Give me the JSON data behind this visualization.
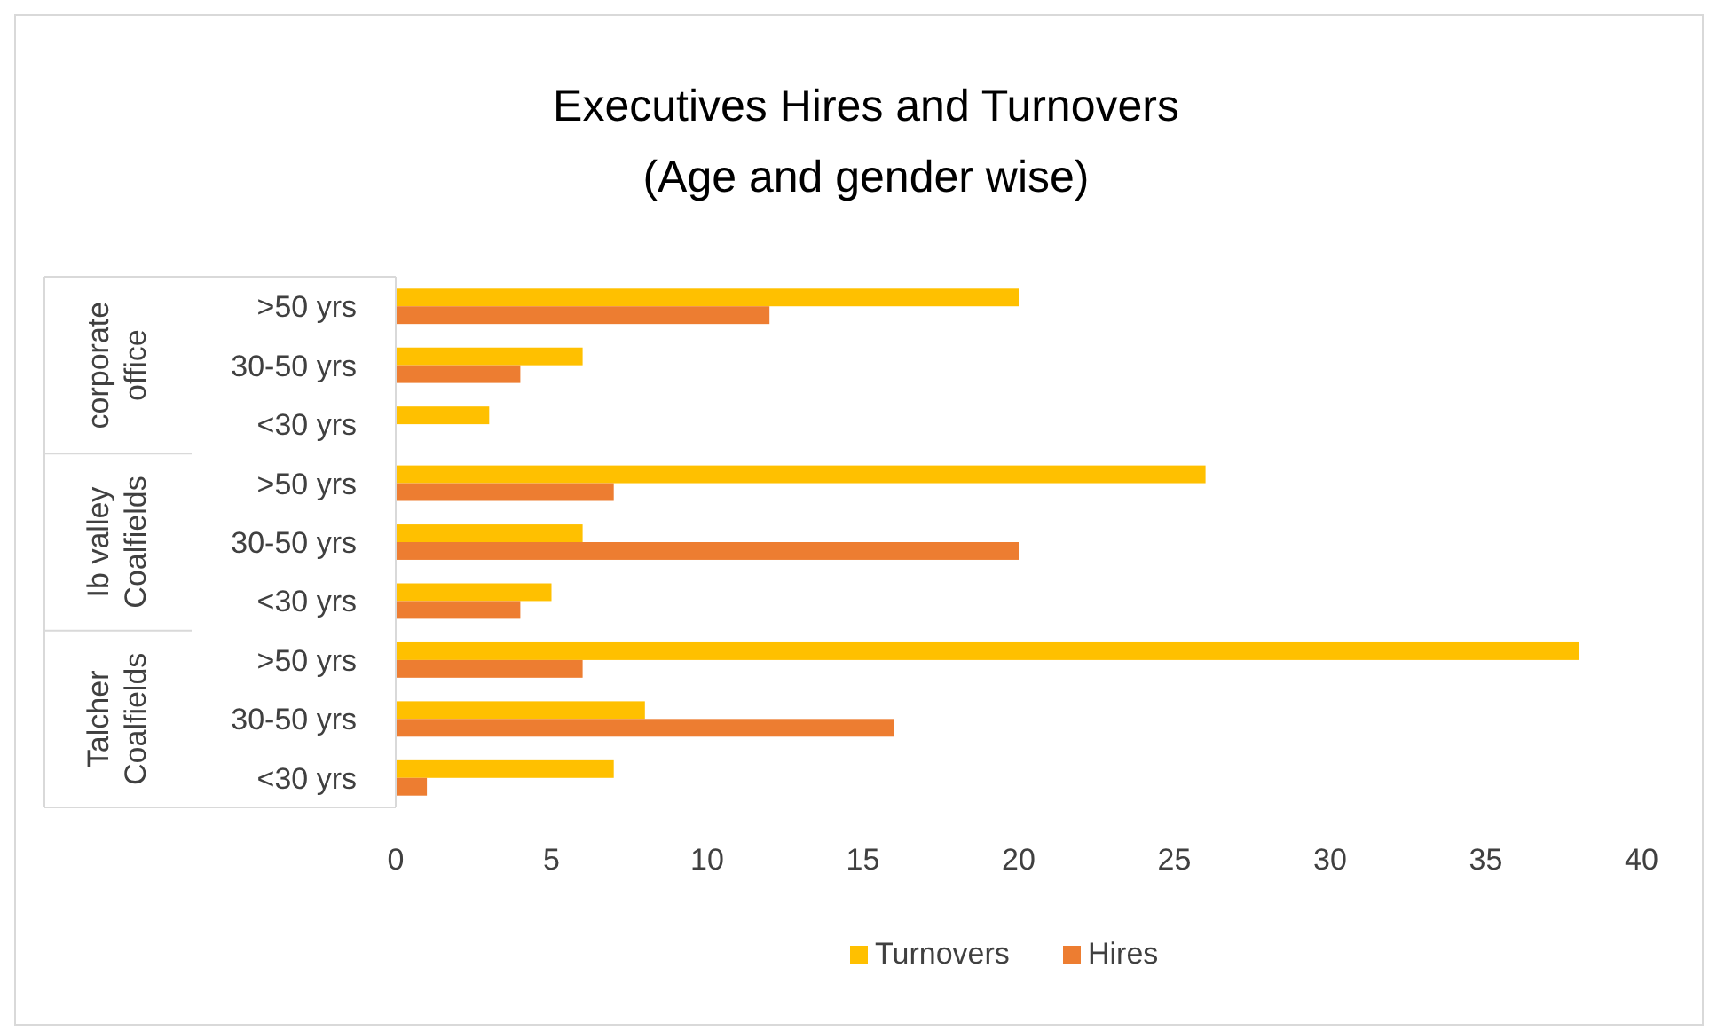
{
  "chart_data": {
    "type": "bar",
    "orientation": "horizontal",
    "title": "Executives Hires and Turnovers",
    "subtitle": "(Age and gender wise)",
    "categories": [
      ">50 yrs",
      "30-50 yrs",
      "<30 yrs",
      ">50 yrs",
      "30-50 yrs",
      "<30 yrs",
      ">50 yrs",
      "30-50 yrs",
      "<30 yrs"
    ],
    "annotations": [
      "corporate office",
      "Ib valley Coalfields",
      "Talcher Coalfields"
    ],
    "series": [
      {
        "name": "Turnovers",
        "color": "#ffc000",
        "values": [
          20,
          6,
          3,
          26,
          6,
          5,
          38,
          8,
          7
        ]
      },
      {
        "name": "Hires",
        "color": "#ed7d31",
        "values": [
          12,
          4,
          0,
          7,
          20,
          4,
          6,
          16,
          1
        ]
      }
    ],
    "xlim": [
      0,
      40
    ],
    "xticks": [
      0,
      5,
      10,
      15,
      20,
      25,
      30,
      35,
      40
    ],
    "grid": false,
    "legend": "bottom"
  }
}
